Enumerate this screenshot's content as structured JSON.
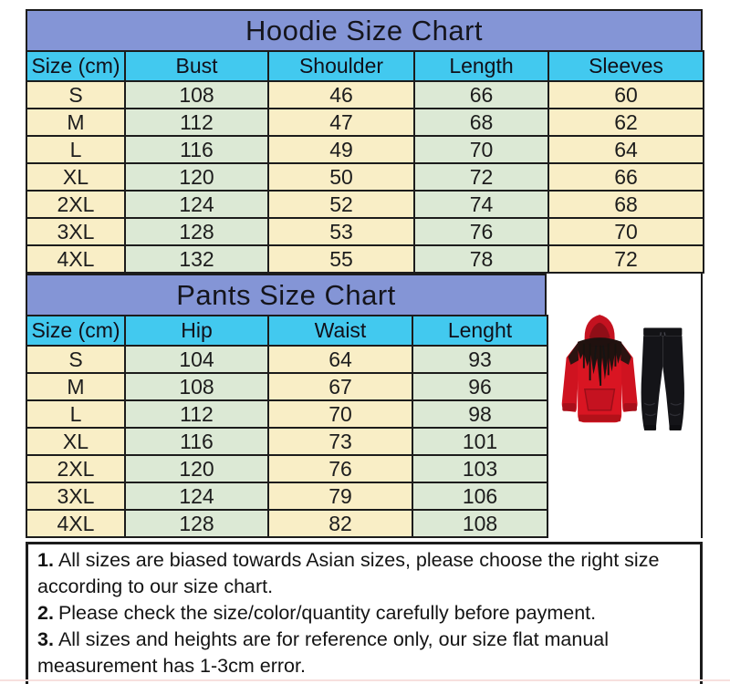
{
  "chart_data": [
    {
      "type": "table",
      "title": "Hoodie Size Chart",
      "columns": [
        "Size (cm)",
        "Bust",
        "Shoulder",
        "Length",
        "Sleeves"
      ],
      "rows": [
        [
          "S",
          "108",
          "46",
          "66",
          "60"
        ],
        [
          "M",
          "112",
          "47",
          "68",
          "62"
        ],
        [
          "L",
          "116",
          "49",
          "70",
          "64"
        ],
        [
          "XL",
          "120",
          "50",
          "72",
          "66"
        ],
        [
          "2XL",
          "124",
          "52",
          "74",
          "68"
        ],
        [
          "3XL",
          "128",
          "53",
          "76",
          "70"
        ],
        [
          "4XL",
          "132",
          "55",
          "78",
          "72"
        ]
      ]
    },
    {
      "type": "table",
      "title": "Pants Size Chart",
      "columns": [
        "Size (cm)",
        "Hip",
        "Waist",
        "Lenght"
      ],
      "rows": [
        [
          "S",
          "104",
          "64",
          "93"
        ],
        [
          "M",
          "108",
          "67",
          "96"
        ],
        [
          "L",
          "112",
          "70",
          "98"
        ],
        [
          "XL",
          "116",
          "73",
          "101"
        ],
        [
          "2XL",
          "120",
          "76",
          "103"
        ],
        [
          "3XL",
          "124",
          "79",
          "106"
        ],
        [
          "4XL",
          "128",
          "82",
          "108"
        ]
      ]
    }
  ],
  "notes": [
    {
      "num": "1.",
      "text": "All sizes are biased towards Asian sizes, please choose the right size according to our size chart."
    },
    {
      "num": "2.",
      "text": "Please check the size/color/quantity carefully before payment."
    },
    {
      "num": "3.",
      "text": "All sizes and heights are for reference only, our size flat manual measurement has 1-3cm error."
    }
  ],
  "product_image": {
    "description": "Red hoodie with black grunge print and black jogger pants"
  },
  "colors": {
    "title_bg": "#8495d6",
    "header_bg": "#42c9ef",
    "cell_yellow": "#f9eec6",
    "cell_green": "#dce9d5",
    "grid_border": "#1c1c1c",
    "hoodie_red": "#d91522",
    "pants_black": "#151518"
  }
}
